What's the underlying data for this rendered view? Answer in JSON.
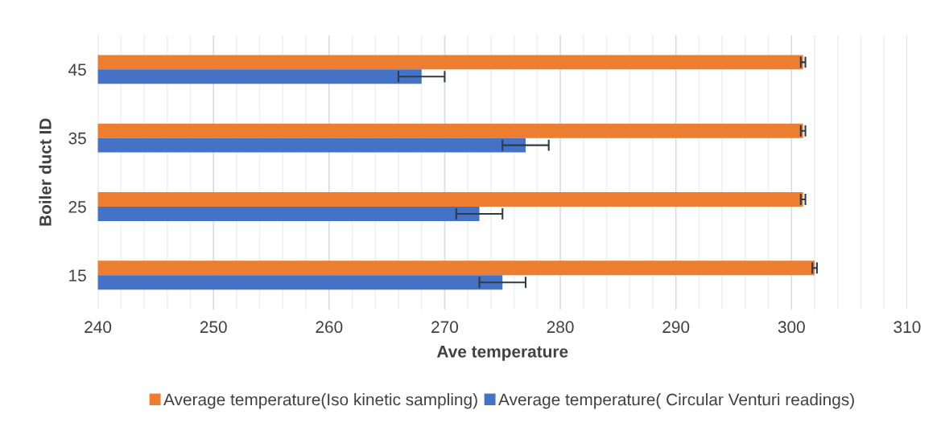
{
  "chart_data": {
    "type": "bar",
    "orientation": "horizontal",
    "xlabel": "Ave temperature",
    "ylabel": "Boiler duct ID",
    "categories": [
      "45",
      "35",
      "25",
      "15"
    ],
    "series": [
      {
        "name": "Average temperature(Iso kinetic sampling)",
        "color": "#ed7d31",
        "values": [
          301,
          301,
          301,
          302
        ],
        "errors": [
          0.2,
          0.2,
          0.2,
          0.2
        ]
      },
      {
        "name": "Average temperature( Circular Venturi readings)",
        "color": "#4472c4",
        "values": [
          268,
          277,
          273,
          275
        ],
        "errors": [
          2,
          2,
          2,
          2
        ]
      }
    ],
    "xlim": [
      240,
      310
    ],
    "xticks": [
      240,
      {
        "value": 242,
        "label": null
      },
      {
        "value": 244,
        "label": null
      },
      {
        "value": 246,
        "label": null
      },
      {
        "value": 248,
        "label": null
      },
      250,
      {
        "value": 252,
        "label": null
      },
      {
        "value": 254,
        "label": null
      },
      {
        "value": 256,
        "label": null
      },
      {
        "value": 258,
        "label": null
      },
      260,
      {
        "value": 262,
        "label": null
      },
      {
        "value": 264,
        "label": null
      },
      {
        "value": 266,
        "label": null
      },
      {
        "value": 268,
        "label": null
      },
      270,
      {
        "value": 272,
        "label": null
      },
      {
        "value": 274,
        "label": null
      },
      {
        "value": 276,
        "label": null
      },
      {
        "value": 278,
        "label": null
      },
      280,
      {
        "value": 282,
        "label": null
      },
      {
        "value": 284,
        "label": null
      },
      {
        "value": 286,
        "label": null
      },
      {
        "value": 288,
        "label": null
      },
      290,
      {
        "value": 292,
        "label": null
      },
      {
        "value": 294,
        "label": null
      },
      {
        "value": 296,
        "label": null
      },
      {
        "value": 298,
        "label": null
      },
      300,
      {
        "value": 302,
        "label": null
      },
      {
        "value": 304,
        "label": null
      },
      {
        "value": 306,
        "label": null
      },
      {
        "value": 308,
        "label": null
      },
      310
    ],
    "grid": "x",
    "legend": "bottom"
  }
}
